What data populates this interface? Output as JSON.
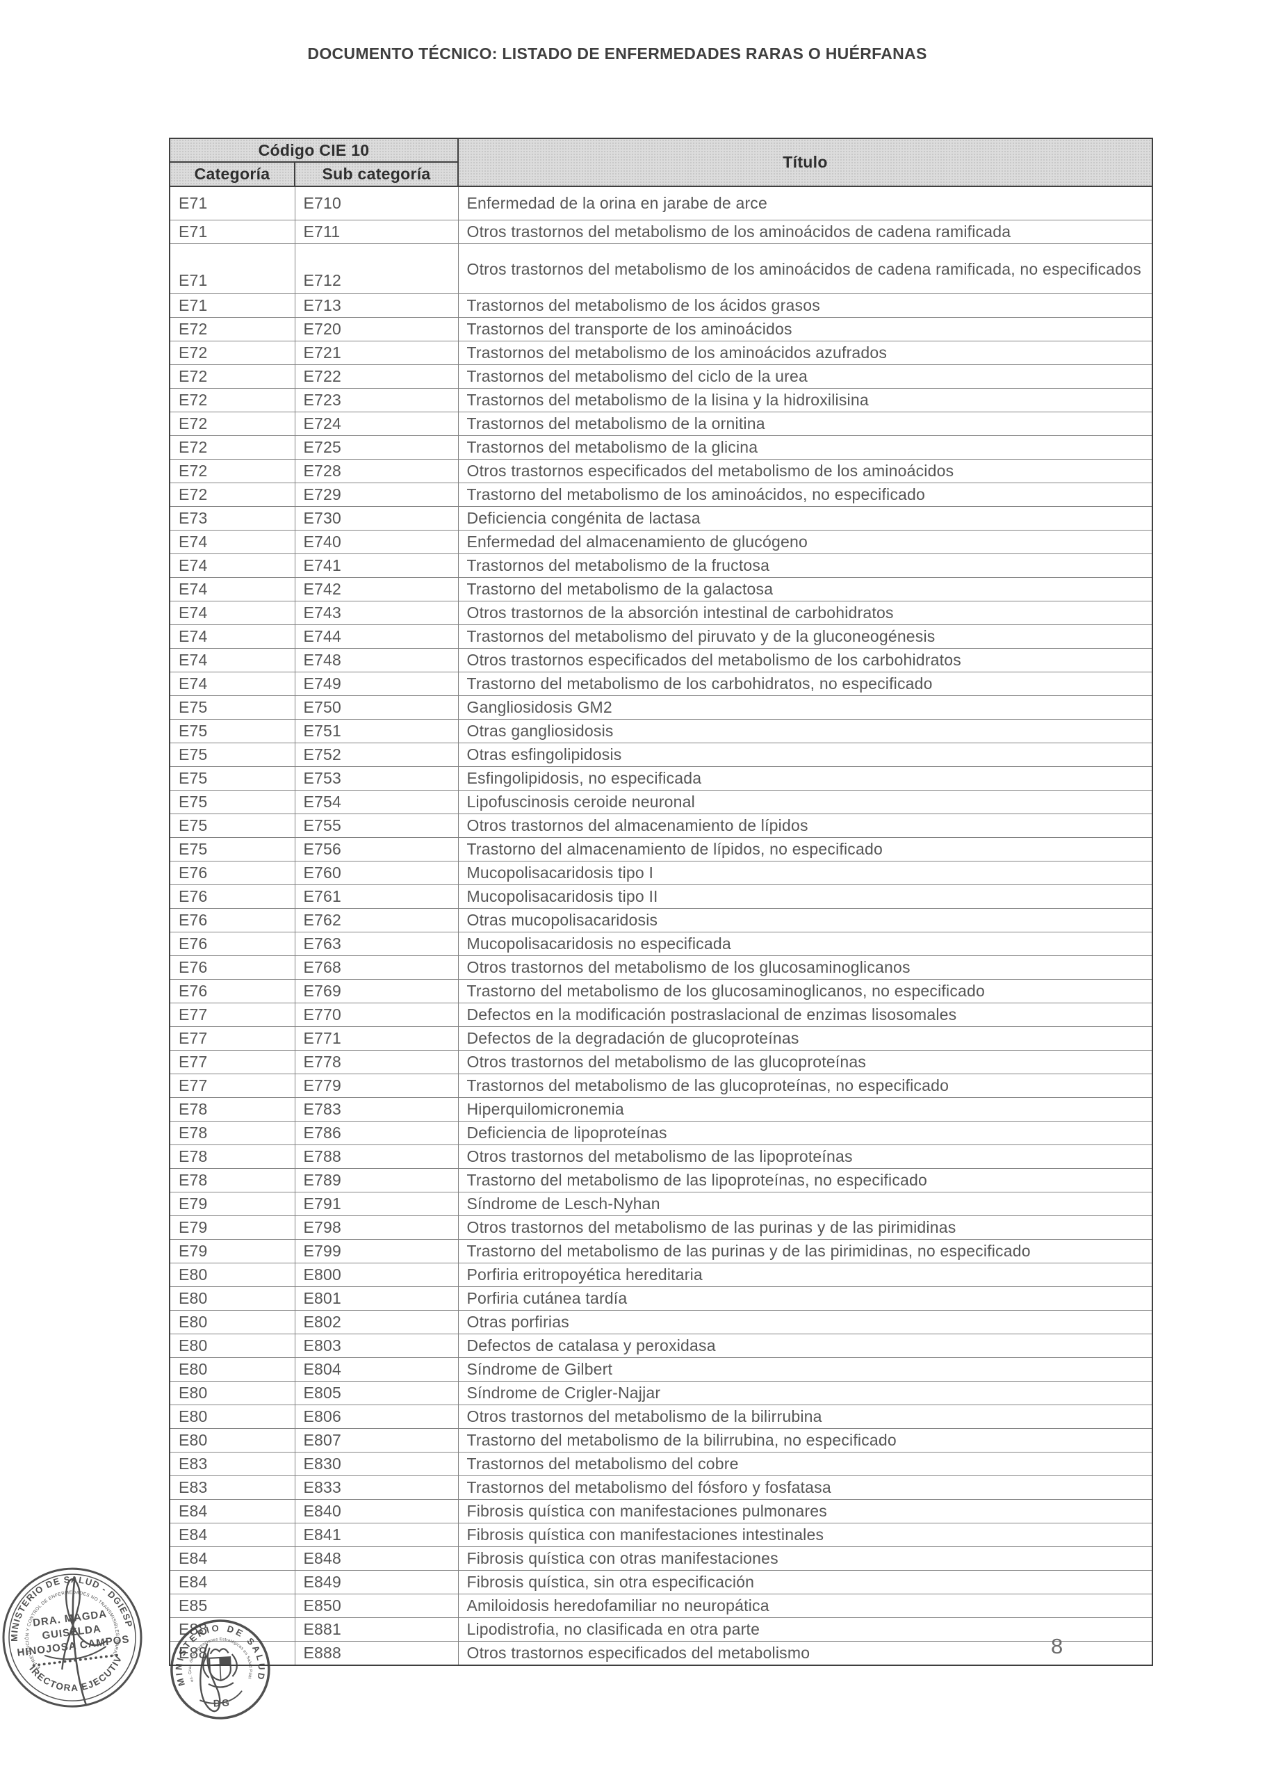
{
  "document": {
    "title": "DOCUMENTO TÉCNICO: LISTADO DE ENFERMEDADES RARAS O HUÉRFANAS",
    "page_number": "8"
  },
  "table": {
    "header": {
      "code_group": "Código CIE 10",
      "category": "Categoría",
      "subcategory": "Sub categoría",
      "title": "Título"
    },
    "rows": [
      {
        "cat": "E71",
        "sub": "E710",
        "title": "Enfermedad de la orina en jarabe de arce"
      },
      {
        "cat": "E71",
        "sub": "E711",
        "title": "Otros trastornos del metabolismo de los aminoácidos de cadena ramificada"
      },
      {
        "cat": "E71",
        "sub": "E712",
        "title": "Otros trastornos del metabolismo de los aminoácidos de cadena ramificada, no especificados"
      },
      {
        "cat": "E71",
        "sub": "E713",
        "title": "Trastornos del metabolismo de los ácidos grasos"
      },
      {
        "cat": "E72",
        "sub": "E720",
        "title": "Trastornos del transporte de los aminoácidos"
      },
      {
        "cat": "E72",
        "sub": "E721",
        "title": "Trastornos del metabolismo de los aminoácidos azufrados"
      },
      {
        "cat": "E72",
        "sub": "E722",
        "title": "Trastornos del metabolismo del ciclo de la urea"
      },
      {
        "cat": "E72",
        "sub": "E723",
        "title": "Trastornos del metabolismo de la lisina y la hidroxilisina"
      },
      {
        "cat": "E72",
        "sub": "E724",
        "title": "Trastornos del metabolismo de la ornitina"
      },
      {
        "cat": "E72",
        "sub": "E725",
        "title": "Trastornos del metabolismo de la glicina"
      },
      {
        "cat": "E72",
        "sub": "E728",
        "title": "Otros trastornos especificados del metabolismo de los aminoácidos"
      },
      {
        "cat": "E72",
        "sub": "E729",
        "title": "Trastorno del metabolismo de los aminoácidos, no especificado"
      },
      {
        "cat": "E73",
        "sub": "E730",
        "title": "Deficiencia congénita de lactasa"
      },
      {
        "cat": "E74",
        "sub": "E740",
        "title": "Enfermedad del almacenamiento de glucógeno"
      },
      {
        "cat": "E74",
        "sub": "E741",
        "title": "Trastornos del metabolismo de la fructosa"
      },
      {
        "cat": "E74",
        "sub": "E742",
        "title": "Trastorno del metabolismo de la galactosa"
      },
      {
        "cat": "E74",
        "sub": "E743",
        "title": "Otros trastornos de la absorción intestinal de carbohidratos"
      },
      {
        "cat": "E74",
        "sub": "E744",
        "title": "Trastornos del metabolismo del piruvato y de la gluconeogénesis"
      },
      {
        "cat": "E74",
        "sub": "E748",
        "title": "Otros trastornos especificados del metabolismo de los carbohidratos"
      },
      {
        "cat": "E74",
        "sub": "E749",
        "title": "Trastorno del metabolismo de los carbohidratos, no especificado"
      },
      {
        "cat": "E75",
        "sub": "E750",
        "title": "Gangliosidosis GM2"
      },
      {
        "cat": "E75",
        "sub": "E751",
        "title": "Otras gangliosidosis"
      },
      {
        "cat": "E75",
        "sub": "E752",
        "title": "Otras esfingolipidosis"
      },
      {
        "cat": "E75",
        "sub": "E753",
        "title": "Esfingolipidosis, no especificada"
      },
      {
        "cat": "E75",
        "sub": "E754",
        "title": "Lipofuscinosis ceroide neuronal"
      },
      {
        "cat": "E75",
        "sub": "E755",
        "title": "Otros trastornos del almacenamiento de lípidos"
      },
      {
        "cat": "E75",
        "sub": "E756",
        "title": "Trastorno del almacenamiento de lípidos, no especificado"
      },
      {
        "cat": "E76",
        "sub": "E760",
        "title": "Mucopolisacaridosis tipo I"
      },
      {
        "cat": "E76",
        "sub": "E761",
        "title": "Mucopolisacaridosis tipo II"
      },
      {
        "cat": "E76",
        "sub": "E762",
        "title": "Otras mucopolisacaridosis"
      },
      {
        "cat": "E76",
        "sub": "E763",
        "title": "Mucopolisacaridosis no especificada"
      },
      {
        "cat": "E76",
        "sub": "E768",
        "title": "Otros trastornos del metabolismo de los glucosaminoglicanos"
      },
      {
        "cat": "E76",
        "sub": "E769",
        "title": "Trastorno del metabolismo de los glucosaminoglicanos, no especificado"
      },
      {
        "cat": "E77",
        "sub": "E770",
        "title": "Defectos en la modificación postraslacional de enzimas lisosomales"
      },
      {
        "cat": "E77",
        "sub": "E771",
        "title": "Defectos de la degradación de glucoproteínas"
      },
      {
        "cat": "E77",
        "sub": "E778",
        "title": "Otros trastornos del metabolismo de las glucoproteínas"
      },
      {
        "cat": "E77",
        "sub": "E779",
        "title": "Trastornos del metabolismo de las glucoproteínas, no especificado"
      },
      {
        "cat": "E78",
        "sub": "E783",
        "title": "Hiperquilomicronemia"
      },
      {
        "cat": "E78",
        "sub": "E786",
        "title": "Deficiencia de lipoproteínas"
      },
      {
        "cat": "E78",
        "sub": "E788",
        "title": "Otros trastornos del metabolismo de las lipoproteínas"
      },
      {
        "cat": "E78",
        "sub": "E789",
        "title": "Trastorno del metabolismo de las lipoproteínas, no especificado"
      },
      {
        "cat": "E79",
        "sub": "E791",
        "title": "Síndrome de Lesch-Nyhan"
      },
      {
        "cat": "E79",
        "sub": "E798",
        "title": "Otros trastornos del metabolismo de las purinas y de las pirimidinas"
      },
      {
        "cat": "E79",
        "sub": "E799",
        "title": "Trastorno del metabolismo de las purinas y de las pirimidinas, no especificado"
      },
      {
        "cat": "E80",
        "sub": "E800",
        "title": "Porfiria eritropoyética hereditaria"
      },
      {
        "cat": "E80",
        "sub": "E801",
        "title": "Porfiria cutánea tardía"
      },
      {
        "cat": "E80",
        "sub": "E802",
        "title": "Otras porfirias"
      },
      {
        "cat": "E80",
        "sub": "E803",
        "title": "Defectos de catalasa y peroxidasa"
      },
      {
        "cat": "E80",
        "sub": "E804",
        "title": "Síndrome de Gilbert"
      },
      {
        "cat": "E80",
        "sub": "E805",
        "title": "Síndrome de Crigler-Najjar"
      },
      {
        "cat": "E80",
        "sub": "E806",
        "title": "Otros trastornos del metabolismo de la bilirrubina"
      },
      {
        "cat": "E80",
        "sub": "E807",
        "title": "Trastorno del metabolismo de la bilirrubina, no especificado"
      },
      {
        "cat": "E83",
        "sub": "E830",
        "title": "Trastornos del metabolismo del cobre"
      },
      {
        "cat": "E83",
        "sub": "E833",
        "title": "Trastornos del metabolismo del fósforo y fosfatasa"
      },
      {
        "cat": "E84",
        "sub": "E840",
        "title": "Fibrosis quística con manifestaciones pulmonares"
      },
      {
        "cat": "E84",
        "sub": "E841",
        "title": "Fibrosis quística con manifestaciones intestinales"
      },
      {
        "cat": "E84",
        "sub": "E848",
        "title": "Fibrosis quística con otras manifestaciones"
      },
      {
        "cat": "E84",
        "sub": "E849",
        "title": "Fibrosis quística, sin otra especificación"
      },
      {
        "cat": "E85",
        "sub": "E850",
        "title": "Amiloidosis heredofamiliar no neuropática"
      },
      {
        "cat": "E88",
        "sub": "E881",
        "title": "Lipodistrofia, no clasificada en otra parte"
      },
      {
        "cat": "E88",
        "sub": "E888",
        "title": "Otros trastornos especificados del metabolismo"
      }
    ]
  },
  "stamps": {
    "director_stamp": {
      "ring_top": "MINISTERIO DE SALUD - DGIESP",
      "ring_inner": "DIRECCIÓN DE PREVENCIÓN Y CONTROL DE ENFERMEDADES NO TRANSMISIBLES, RARAS Y HUÉRFANAS",
      "name_line1": "DRA. MAGDA",
      "name_line2": "GUISELDA",
      "name_line3": "HINOJOSA CAMPOS",
      "ring_bottom": "DIRECTORA EJECUTIVA"
    },
    "ministry_stamp": {
      "ring_top": "MINISTERIO DE SALUD",
      "ring_inner": "Direc. Gral. de Intervenciones Estratégicas en Salud Pública",
      "bottom_label": "DG"
    }
  },
  "colors": {
    "header_fill": "#dcdcdc",
    "grid_border": "#828282",
    "outer_border": "#3f3f3f",
    "body_text": "#565656",
    "stamp_ink": "#3e3e3e"
  }
}
